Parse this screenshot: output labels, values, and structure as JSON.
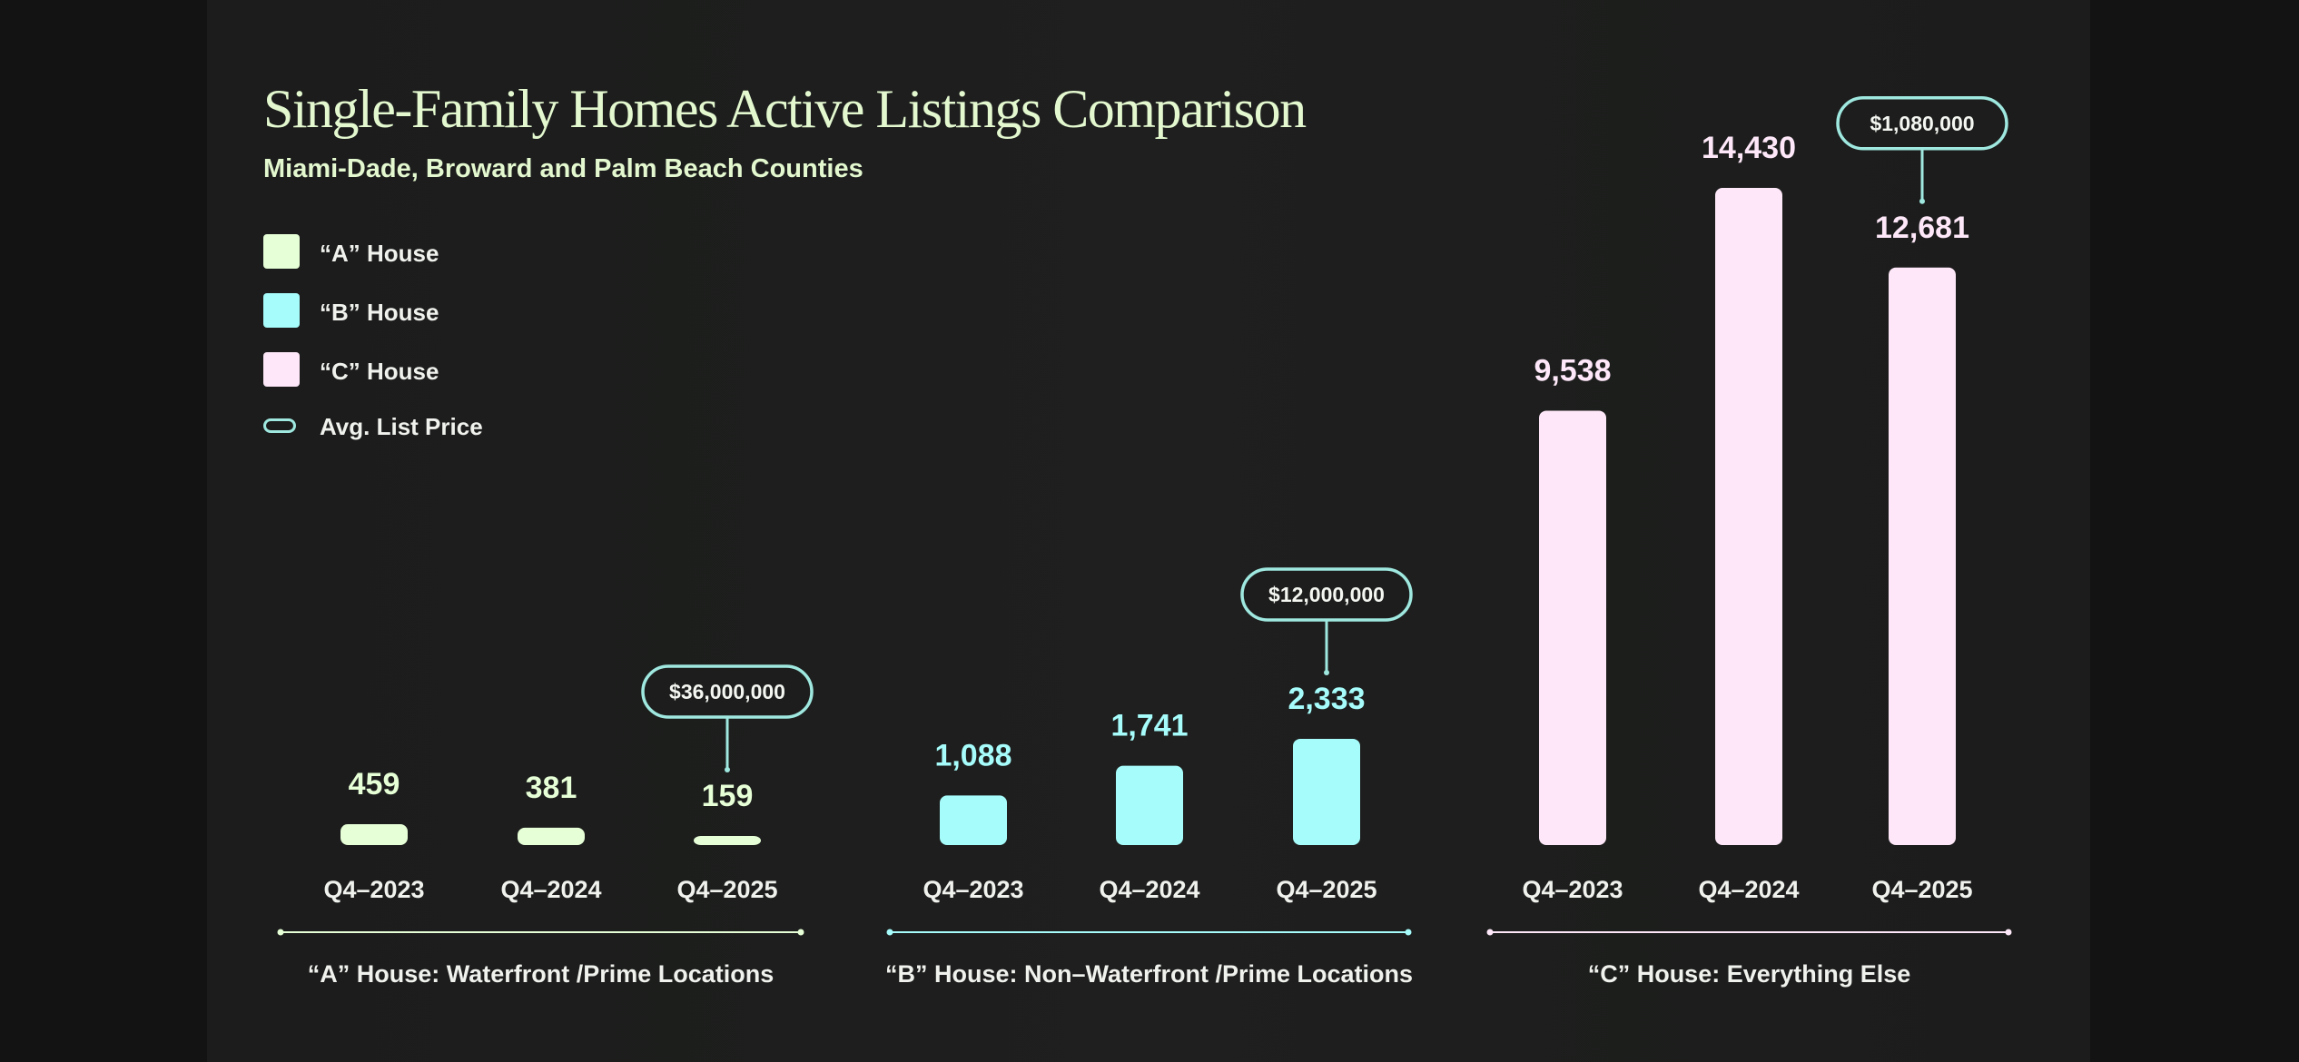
{
  "colors": {
    "a_house": "#e6ffd6",
    "b_house": "#a6fcfb",
    "c_house": "#fde7f8",
    "price_outline": "#9fe8e0",
    "axis_text": "#f0f2ee"
  },
  "legend": [
    {
      "label": "“A” House",
      "swatch": "a_house"
    },
    {
      "label": "“B” House",
      "swatch": "b_house"
    },
    {
      "label": "“C” House",
      "swatch": "c_house"
    },
    {
      "label": "Avg. List Price",
      "swatch": "outline"
    }
  ],
  "chart_data": {
    "type": "bar",
    "title": "Single-Family Homes Active Listings Comparison",
    "subtitle": "Miami-Dade, Broward and Palm Beach Counties",
    "categories": [
      "Q4–2023",
      "Q4–2024",
      "Q4–2025"
    ],
    "ylim": [
      0,
      14430
    ],
    "grid": false,
    "legend_position": "top-left",
    "groups": [
      {
        "name": "“A” House: Waterfront /Prime Locations",
        "values": [
          459,
          381,
          159
        ],
        "value_labels": [
          "459",
          "381",
          "159"
        ],
        "color_key": "a_house",
        "avg_list_price": "$36,000,000",
        "price_on_index": 2
      },
      {
        "name": "“B” House: Non–Waterfront /Prime Locations",
        "values": [
          1088,
          1741,
          2333
        ],
        "value_labels": [
          "1,088",
          "1,741",
          "2,333"
        ],
        "color_key": "b_house",
        "avg_list_price": "$12,000,000",
        "price_on_index": 2
      },
      {
        "name": "“C” House: Everything Else",
        "values": [
          9538,
          14430,
          12681
        ],
        "value_labels": [
          "9,538",
          "14,430",
          "12,681"
        ],
        "color_key": "c_house",
        "avg_list_price": "$1,080,000",
        "price_on_index": 2
      }
    ]
  }
}
